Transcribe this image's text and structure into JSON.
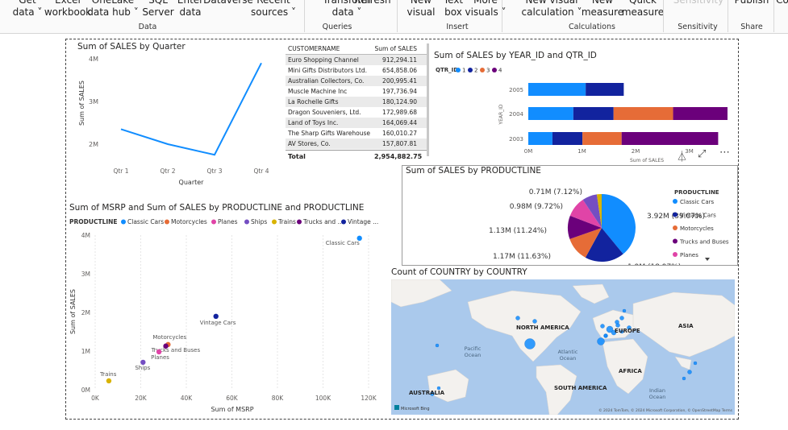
{
  "ribbon": {
    "buttons": [
      {
        "l1": "Get",
        "l2": "data ˅"
      },
      {
        "l1": "Excel",
        "l2": "workbook"
      },
      {
        "l1": "OneLake",
        "l2": "data hub ˅"
      },
      {
        "l1": "SQL",
        "l2": "Server"
      },
      {
        "l1": "Enter",
        "l2": "data"
      },
      {
        "l1": "",
        "l2": "Dataverse"
      },
      {
        "l1": "Recent",
        "l2": "sources ˅"
      },
      {
        "l1": "Transform",
        "l2": "data ˅"
      },
      {
        "l1": "",
        "l2": "Refresh"
      },
      {
        "l1": "New",
        "l2": "visual"
      },
      {
        "l1": "Text",
        "l2": "box"
      },
      {
        "l1": "More",
        "l2": "visuals ˅"
      },
      {
        "l1": "New visual",
        "l2": "calculation ˅"
      },
      {
        "l1": "New",
        "l2": "measure"
      },
      {
        "l1": "Quick",
        "l2": "measure"
      },
      {
        "l1": "",
        "l2": "Sensitivity"
      },
      {
        "l1": "",
        "l2": "Publish"
      },
      {
        "l1": "Co",
        "l2": ""
      }
    ],
    "groups": [
      "Data",
      "Queries",
      "Insert",
      "Calculations",
      "Sensitivity",
      "Share"
    ]
  },
  "line_visual": {
    "title": "Sum of SALES by Quarter",
    "chart_data": {
      "type": "line",
      "categories": [
        "Qtr 1",
        "Qtr 2",
        "Qtr 3",
        "Qtr 4"
      ],
      "values": [
        2.35,
        2.0,
        1.75,
        3.9
      ],
      "ylabel": "Sum of SALES",
      "xlabel": "Quarter",
      "yticks": [
        "4M",
        "3M",
        "2M"
      ],
      "color": "#118DFF"
    }
  },
  "table_visual": {
    "headers": [
      "CUSTOMERNAME",
      "Sum of SALES"
    ],
    "rows": [
      [
        "Euro Shopping Channel",
        "912,294.11"
      ],
      [
        "Mini Gifts Distributors Ltd.",
        "654,858.06"
      ],
      [
        "Australian Collectors, Co.",
        "200,995.41"
      ],
      [
        "Muscle Machine Inc",
        "197,736.94"
      ],
      [
        "La Rochelle Gifts",
        "180,124.90"
      ],
      [
        "Dragon Souveniers, Ltd.",
        "172,989.68"
      ],
      [
        "Land of Toys Inc.",
        "164,069.44"
      ],
      [
        "The Sharp Gifts Warehouse",
        "160,010.27"
      ],
      [
        "AV Stores, Co.",
        "157,807.81"
      ]
    ],
    "total_label": "Total",
    "total_value": "2,954,882.75"
  },
  "bar_visual": {
    "title": "Sum of SALES by YEAR_ID and QTR_ID",
    "legend_title": "QTR_ID",
    "legend": [
      "1",
      "2",
      "3",
      "4"
    ],
    "colors": [
      "#118DFF",
      "#12239E",
      "#E66C37",
      "#6B007B"
    ],
    "chart_data": {
      "type": "bar",
      "categories": [
        "2005",
        "2004",
        "2003"
      ],
      "series": [
        {
          "name": "1",
          "values": [
            1.07,
            0.84,
            0.45
          ]
        },
        {
          "name": "2",
          "values": [
            0.71,
            0.75,
            0.56
          ]
        },
        {
          "name": "3",
          "values": [
            0,
            1.11,
            0.73
          ]
        },
        {
          "name": "4",
          "values": [
            0,
            2.0,
            1.8
          ]
        }
      ],
      "xticks": [
        "0M",
        "1M",
        "2M",
        "3M"
      ],
      "xlabel": "Sum of SALES",
      "ylabel": "YEAR_ID"
    }
  },
  "pie_visual": {
    "title": "Sum of SALES by PRODUCTLINE",
    "legend_title": "PRODUCTLINE",
    "chart_data": {
      "type": "pie",
      "labels": [
        "Classic Cars",
        "Vintage Cars",
        "Motorcycles",
        "Trucks and Buses",
        "Planes",
        "Ships",
        "Trains"
      ],
      "values": [
        3.92,
        1.9,
        1.17,
        1.13,
        0.98,
        0.71,
        0.23
      ],
      "data_labels": [
        "3.92M (39.07%)",
        "1.9M (18.97%)",
        "1.17M (11.63%)",
        "1.13M (11.24%)",
        "0.98M (9.72%)",
        "0.71M (7.12%)",
        ""
      ],
      "colors": [
        "#118DFF",
        "#12239E",
        "#E66C37",
        "#6B007B",
        "#E044A7",
        "#744EC2",
        "#D9B300"
      ]
    },
    "legend_items": [
      "Classic Cars",
      "Vintage Cars",
      "Motorcycles",
      "Trucks and Buses",
      "Planes"
    ]
  },
  "scatter_visual": {
    "title": "Sum of MSRP and Sum of SALES by PRODUCTLINE and PRODUCTLINE",
    "legend_title": "PRODUCTLINE",
    "legend": [
      "Classic Cars",
      "Motorcycles",
      "Planes",
      "Ships",
      "Trains",
      "Trucks and ...",
      "Vintage ..."
    ],
    "legend_colors": [
      "#118DFF",
      "#E66C37",
      "#E044A7",
      "#744EC2",
      "#D9B300",
      "#6B007B",
      "#12239E"
    ],
    "chart_data": {
      "type": "scatter",
      "points": [
        {
          "label": "Classic Cars",
          "x": 116000,
          "y": 3.92,
          "color": "#118DFF"
        },
        {
          "label": "Vintage Cars",
          "x": 53000,
          "y": 1.9,
          "color": "#12239E"
        },
        {
          "label": "Motorcycles",
          "x": 32000,
          "y": 1.17,
          "color": "#E66C37"
        },
        {
          "label": "Trucks and Buses",
          "x": 31000,
          "y": 1.13,
          "color": "#6B007B"
        },
        {
          "label": "Planes",
          "x": 28000,
          "y": 0.98,
          "color": "#E044A7"
        },
        {
          "label": "Ships",
          "x": 21000,
          "y": 0.71,
          "color": "#744EC2"
        },
        {
          "label": "Trains",
          "x": 6000,
          "y": 0.23,
          "color": "#D9B300"
        }
      ],
      "xticks": [
        "0K",
        "20K",
        "40K",
        "60K",
        "80K",
        "100K",
        "120K"
      ],
      "yticks": [
        "4M",
        "3M",
        "2M",
        "1M",
        "0M"
      ],
      "xlabel": "Sum of MSRP",
      "ylabel": "Sum of SALES"
    }
  },
  "map_visual": {
    "title": "Count of COUNTRY by COUNTRY",
    "labels": [
      "NORTH AMERICA",
      "EUROPE",
      "ASIA",
      "AFRICA",
      "SOUTH AMERICA",
      "AUSTRALIA",
      "Pacific Ocean",
      "Atlantic Ocean",
      "Indian Ocean"
    ],
    "footer": "© 2024 TomTom, © 2024 Microsoft Corporation, © OpenStreetMap  Terms",
    "logo": "Microsoft Bing",
    "colors": {
      "ocean": "#aac9ec",
      "land": "#f3f1ee",
      "bubble": "#118DFF"
    }
  }
}
